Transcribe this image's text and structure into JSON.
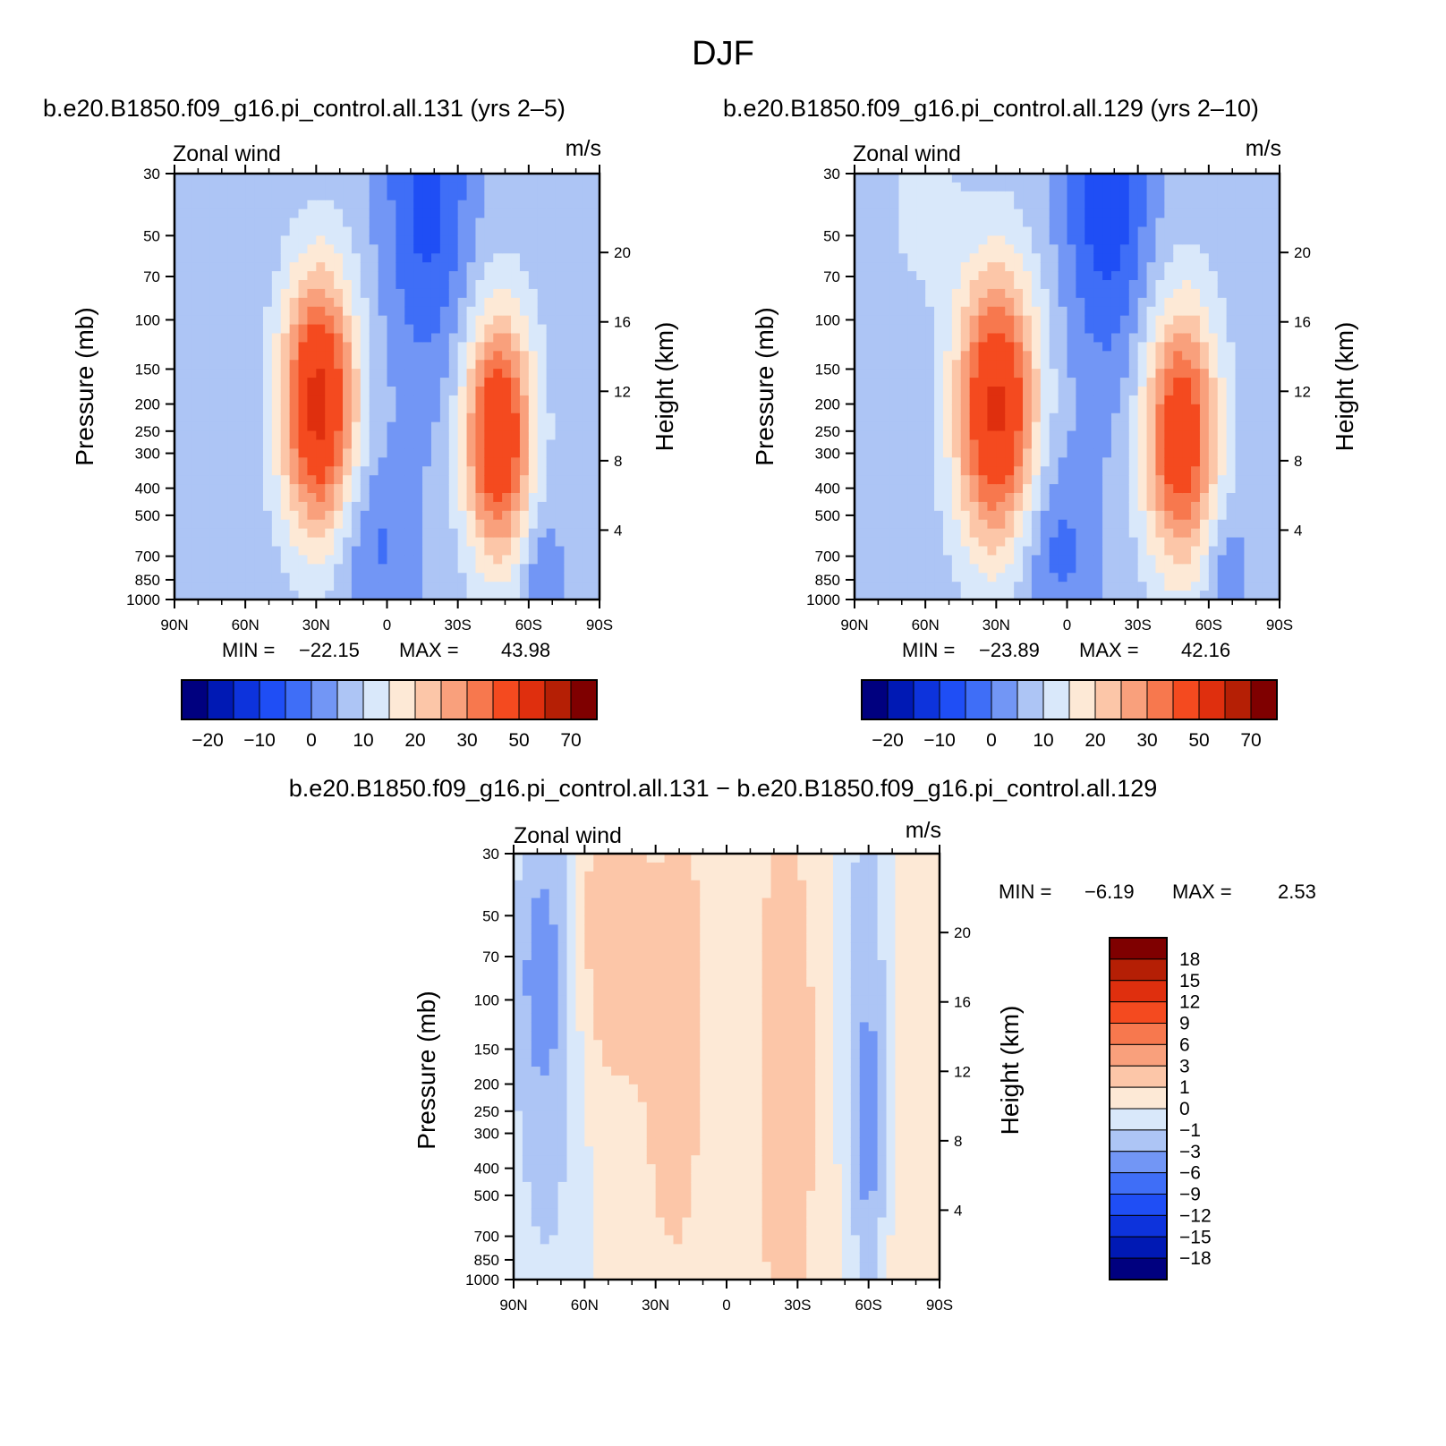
{
  "figure": {
    "title": "DJF"
  },
  "palettes": {
    "full": [
      "#00007f",
      "#0019b4",
      "#0d33dc",
      "#1f4ef5",
      "#3f6ef7",
      "#7296f5",
      "#adc5f5",
      "#d9e8fa",
      "#fde9d6",
      "#fcc6a8",
      "#f9a07c",
      "#f7784e",
      "#f44a1f",
      "#df2f0e",
      "#b51f05",
      "#7f0000"
    ],
    "diff": [
      "#00007f",
      "#0019b4",
      "#0d33dc",
      "#1f4ef5",
      "#3f6ef7",
      "#7296f5",
      "#adc5f5",
      "#d9e8fa",
      "#fde9d6",
      "#fcc6a8",
      "#f9a07c",
      "#f7784e",
      "#f44a1f",
      "#df2f0e",
      "#b51f05",
      "#7f0000"
    ]
  },
  "chart_data": [
    {
      "type": "heatmap",
      "title": "b.e20.B1850.f09_g16.pi_control.all.131 (yrs 2–5)",
      "left_label": "Zonal wind",
      "right_label": "m/s",
      "ylabel": "Pressure (mb)",
      "y2label": "Height (km)",
      "x_ticks": [
        "90N",
        "60N",
        "30N",
        "0",
        "30S",
        "60S",
        "90S"
      ],
      "y_ticks": [
        "30",
        "50",
        "70",
        "100",
        "150",
        "200",
        "250",
        "300",
        "400",
        "500",
        "700",
        "850",
        "1000"
      ],
      "y2_ticks": [
        "20",
        "16",
        "12",
        "8",
        "4"
      ],
      "min_label": "MIN =",
      "min_value": "−22.15",
      "max_label": "MAX =",
      "max_value": "43.98",
      "colorbar_labels": [
        "−20",
        "−10",
        "0",
        "10",
        "20",
        "30",
        "50",
        "70"
      ],
      "ylim": [
        1000,
        30
      ],
      "xlim": [
        90,
        -90
      ],
      "base": 2,
      "features": [
        {
          "x": 59,
          "p": 38,
          "a": -2,
          "sx": 10,
          "sy": 0.5
        },
        {
          "x": 29,
          "p": 200,
          "a": 41,
          "sx": 11,
          "sy": 0.75
        },
        {
          "x": -47,
          "p": 260,
          "a": 38,
          "sx": 10,
          "sy": 0.7
        },
        {
          "x": -17,
          "p": 34,
          "a": -14,
          "sx": 13,
          "sy": 1.1
        },
        {
          "x": 5,
          "p": 640,
          "a": -8,
          "sx": 12,
          "sy": 0.55
        },
        {
          "x": -65,
          "p": 800,
          "a": -7,
          "sx": 6,
          "sy": 0.4
        }
      ]
    },
    {
      "type": "heatmap",
      "title": "b.e20.B1850.f09_g16.pi_control.all.129 (yrs 2–10)",
      "left_label": "Zonal wind",
      "right_label": "m/s",
      "ylabel": "Pressure (mb)",
      "y2label": "Height (km)",
      "x_ticks": [
        "90N",
        "60N",
        "30N",
        "0",
        "30S",
        "60S",
        "90S"
      ],
      "y_ticks": [
        "30",
        "50",
        "70",
        "100",
        "150",
        "200",
        "250",
        "300",
        "400",
        "500",
        "700",
        "850",
        "1000"
      ],
      "y2_ticks": [
        "20",
        "16",
        "12",
        "8",
        "4"
      ],
      "min_label": "MIN =",
      "min_value": "−23.89",
      "max_label": "MAX =",
      "max_value": "42.16",
      "colorbar_labels": [
        "−20",
        "−10",
        "0",
        "10",
        "20",
        "30",
        "50",
        "70"
      ],
      "ylim": [
        1000,
        30
      ],
      "xlim": [
        90,
        -90
      ],
      "base": 2,
      "features": [
        {
          "x": 61,
          "p": 36,
          "a": 6,
          "sx": 10,
          "sy": 0.55
        },
        {
          "x": 30,
          "p": 210,
          "a": 40,
          "sx": 12,
          "sy": 0.8
        },
        {
          "x": -48,
          "p": 260,
          "a": 35,
          "sx": 11,
          "sy": 0.75
        },
        {
          "x": -17,
          "p": 32,
          "a": -16,
          "sx": 13,
          "sy": 1.1
        },
        {
          "x": 5,
          "p": 640,
          "a": -9,
          "sx": 12,
          "sy": 0.55
        },
        {
          "x": -67,
          "p": 800,
          "a": -7,
          "sx": 6,
          "sy": 0.4
        }
      ]
    },
    {
      "type": "heatmap",
      "title": "b.e20.B1850.f09_g16.pi_control.all.131 − b.e20.B1850.f09_g16.pi_control.all.129",
      "left_label": "Zonal wind",
      "right_label": "m/s",
      "ylabel": "Pressure (mb)",
      "y2label": "Height (km)",
      "x_ticks": [
        "90N",
        "60N",
        "30N",
        "0",
        "30S",
        "60S",
        "90S"
      ],
      "y_ticks": [
        "30",
        "50",
        "70",
        "100",
        "150",
        "200",
        "250",
        "300",
        "400",
        "500",
        "700",
        "850",
        "1000"
      ],
      "y2_ticks": [
        "20",
        "16",
        "12",
        "8",
        "4"
      ],
      "min_label": "MIN =",
      "min_value": "−6.19",
      "max_label": "MAX =",
      "max_value": "2.53",
      "colorbar_labels": [
        "18",
        "15",
        "12",
        "9",
        "6",
        "3",
        "1",
        "0",
        "−1",
        "−3",
        "−6",
        "−9",
        "−12",
        "−15",
        "−18"
      ],
      "ylim": [
        1000,
        30
      ],
      "xlim": [
        90,
        -90
      ],
      "base": 0.4,
      "features": [
        {
          "x": 78,
          "p": 80,
          "a": -4.5,
          "sx": 8,
          "sy": 0.9
        },
        {
          "x": 48,
          "p": 60,
          "a": 1.8,
          "sx": 9,
          "sy": 0.8
        },
        {
          "x": 20,
          "p": 150,
          "a": 1.6,
          "sx": 10,
          "sy": 1.2
        },
        {
          "x": -25,
          "p": 200,
          "a": 1.8,
          "sx": 8,
          "sy": 1.4
        },
        {
          "x": 5,
          "p": 350,
          "a": -0.6,
          "sx": 8,
          "sy": 1.2
        },
        {
          "x": -60,
          "p": 300,
          "a": -3.5,
          "sx": 4,
          "sy": 0.8
        },
        {
          "x": -58,
          "p": 80,
          "a": -1.8,
          "sx": 8,
          "sy": 1.6
        },
        {
          "x": 75,
          "p": 800,
          "a": -1.2,
          "sx": 14,
          "sy": 1.2
        }
      ]
    }
  ]
}
